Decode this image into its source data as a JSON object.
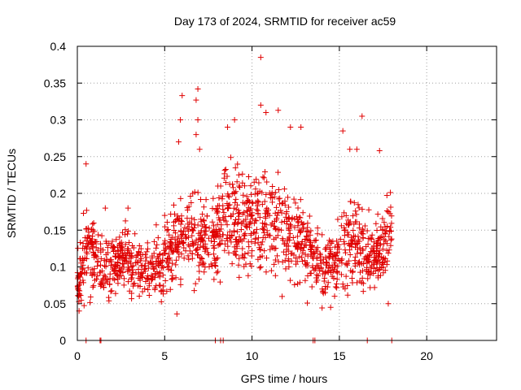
{
  "chart_data": {
    "type": "scatter",
    "title": "Day 173 of 2024, SRMTID for receiver ac59",
    "xlabel": "GPS time / hours",
    "ylabel": "SRMTID / TECUs",
    "xlim": [
      0,
      24
    ],
    "ylim": [
      0,
      0.4
    ],
    "grid": true,
    "marker": "+",
    "x_ticks": [
      0,
      5,
      10,
      15,
      20
    ],
    "y_ticks": [
      0,
      0.05,
      0.1,
      0.15,
      0.2,
      0.25,
      0.3,
      0.35,
      0.4
    ],
    "x_tick_labels": [
      "0",
      "5",
      "10",
      "15",
      "20"
    ],
    "y_tick_labels": [
      "0",
      "0.05",
      "0.1",
      "0.15",
      "0.2",
      "0.25",
      "0.3",
      "0.35",
      "0.4"
    ],
    "data_span_hours": [
      0,
      18
    ],
    "envelope": {
      "hours": [
        0,
        0.5,
        1,
        1.5,
        2,
        2.5,
        3,
        3.5,
        4,
        4.5,
        5,
        5.5,
        6,
        6.5,
        7,
        7.5,
        8,
        8.5,
        9,
        9.5,
        10,
        10.5,
        11,
        11.5,
        12,
        12.5,
        13,
        13.5,
        14,
        14.5,
        15,
        15.5,
        16,
        16.5,
        17,
        17.5,
        18
      ],
      "median": [
        0.07,
        0.12,
        0.11,
        0.1,
        0.1,
        0.11,
        0.11,
        0.1,
        0.09,
        0.1,
        0.1,
        0.13,
        0.14,
        0.15,
        0.14,
        0.13,
        0.14,
        0.18,
        0.16,
        0.15,
        0.16,
        0.15,
        0.16,
        0.16,
        0.15,
        0.14,
        0.13,
        0.12,
        0.1,
        0.11,
        0.12,
        0.13,
        0.13,
        0.12,
        0.12,
        0.13,
        0.15
      ],
      "spread": [
        0.03,
        0.05,
        0.04,
        0.035,
        0.035,
        0.035,
        0.035,
        0.035,
        0.035,
        0.035,
        0.04,
        0.05,
        0.06,
        0.06,
        0.05,
        0.04,
        0.05,
        0.06,
        0.06,
        0.06,
        0.06,
        0.06,
        0.06,
        0.06,
        0.05,
        0.05,
        0.045,
        0.04,
        0.035,
        0.04,
        0.05,
        0.05,
        0.05,
        0.045,
        0.04,
        0.04,
        0.04
      ]
    },
    "notable_points": [
      {
        "x": 0.5,
        "y": 0.24
      },
      {
        "x": 1.6,
        "y": 0.18
      },
      {
        "x": 2.9,
        "y": 0.18
      },
      {
        "x": 5.0,
        "y": 0.17
      },
      {
        "x": 5.8,
        "y": 0.27
      },
      {
        "x": 5.9,
        "y": 0.3
      },
      {
        "x": 6.0,
        "y": 0.333
      },
      {
        "x": 6.9,
        "y": 0.342
      },
      {
        "x": 6.8,
        "y": 0.327
      },
      {
        "x": 6.9,
        "y": 0.3
      },
      {
        "x": 6.8,
        "y": 0.28
      },
      {
        "x": 7.0,
        "y": 0.26
      },
      {
        "x": 8.6,
        "y": 0.29
      },
      {
        "x": 9.0,
        "y": 0.3
      },
      {
        "x": 10.5,
        "y": 0.385
      },
      {
        "x": 10.5,
        "y": 0.32
      },
      {
        "x": 10.8,
        "y": 0.31
      },
      {
        "x": 11.5,
        "y": 0.313
      },
      {
        "x": 12.2,
        "y": 0.29
      },
      {
        "x": 12.8,
        "y": 0.29
      },
      {
        "x": 15.2,
        "y": 0.285
      },
      {
        "x": 15.6,
        "y": 0.26
      },
      {
        "x": 16.0,
        "y": 0.26
      },
      {
        "x": 16.3,
        "y": 0.305
      },
      {
        "x": 17.3,
        "y": 0.258
      },
      {
        "x": 5.7,
        "y": 0.036
      },
      {
        "x": 14.5,
        "y": 0.045
      },
      {
        "x": 0.1,
        "y": 0.04
      },
      {
        "x": 17.8,
        "y": 0.05
      }
    ],
    "zero_points_hours": [
      0.5,
      1.3,
      1.35,
      7.9,
      8.2,
      8.35,
      13.5,
      13.6,
      16.6,
      18.0
    ]
  }
}
